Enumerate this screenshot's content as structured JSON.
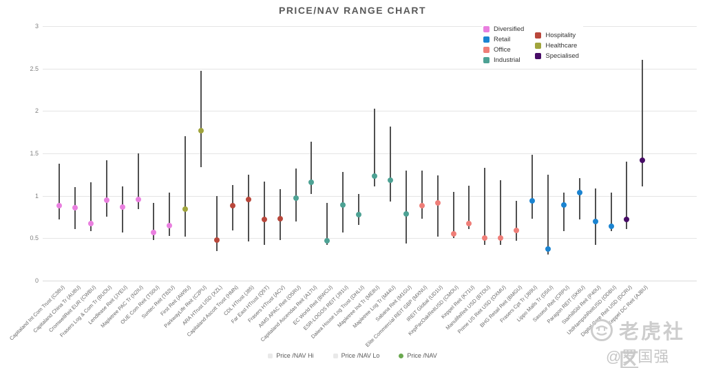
{
  "title": "PRICE/NAV RANGE CHART",
  "watermark": {
    "brand": "老虎社区",
    "handle": "@罗国强Kenny"
  },
  "colors": {
    "range_line": "#4f4f4f",
    "grid": "#e4e4e4",
    "title_text": "#595959",
    "axis_text": "#666666",
    "price_nav_marker": "#6aa84f",
    "sectors": {
      "Diversified": "#e97fdf",
      "Retail": "#1b84d1",
      "Office": "#ef7e78",
      "Industrial": "#4da294",
      "Hospitality": "#b9473b",
      "Healthcare": "#a0a43c",
      "Specialised": "#470c66"
    }
  },
  "sector_legend": {
    "column1": [
      "Diversified",
      "Retail",
      "Office",
      "Industrial"
    ],
    "column2": [
      "Hospitality",
      "Healthcare",
      "Specialised"
    ]
  },
  "series_legend": [
    {
      "label": "Price /NAV Hi",
      "marker": "dash"
    },
    {
      "label": "Price /NAV Lo",
      "marker": "dash"
    },
    {
      "label": "Price /NAV",
      "marker": "dot"
    }
  ],
  "chart_data": {
    "type": "scatter",
    "subtype": "hi-lo-range",
    "title": "PRICE/NAV RANGE CHART",
    "xlabel": "",
    "ylabel": "",
    "ylim": [
      0,
      3
    ],
    "yticks": [
      0,
      0.5,
      1,
      1.5,
      2,
      2.5,
      3
    ],
    "grid": true,
    "legend_position": "top-right",
    "series": [
      {
        "name": "Capitaland Int Com Trust (C38U)",
        "sector": "Diversified",
        "hi": 1.38,
        "lo": 0.72,
        "price_nav": 0.88
      },
      {
        "name": "Capitaland China Tr (AU8U)",
        "sector": "Diversified",
        "hi": 1.1,
        "lo": 0.61,
        "price_nav": 0.86
      },
      {
        "name": "CromwellReit EUR (CWBU)",
        "sector": "Diversified",
        "hi": 1.16,
        "lo": 0.58,
        "price_nav": 0.67
      },
      {
        "name": "Frasers Log & Com Tr (BUOU)",
        "sector": "Diversified",
        "hi": 1.42,
        "lo": 0.75,
        "price_nav": 0.95
      },
      {
        "name": "Lendlease Reit (JYEU)",
        "sector": "Diversified",
        "hi": 1.11,
        "lo": 0.57,
        "price_nav": 0.87
      },
      {
        "name": "Mapletree PAC Tr (N2IU)",
        "sector": "Diversified",
        "hi": 1.5,
        "lo": 0.84,
        "price_nav": 0.96
      },
      {
        "name": "OUE Com Reit (TS0U)",
        "sector": "Diversified",
        "hi": 0.92,
        "lo": 0.48,
        "price_nav": 0.57
      },
      {
        "name": "Suntec Reit (T82U)",
        "sector": "Diversified",
        "hi": 1.04,
        "lo": 0.53,
        "price_nav": 0.65
      },
      {
        "name": "First Reit (AW9U)",
        "sector": "Healthcare",
        "hi": 1.7,
        "lo": 0.52,
        "price_nav": 0.84
      },
      {
        "name": "ParkwayLife Reit (C2PU)",
        "sector": "Healthcare",
        "hi": 2.47,
        "lo": 1.34,
        "price_nav": 1.77
      },
      {
        "name": "ARA HTrust USD (XZL)",
        "sector": "Hospitality",
        "hi": 1.0,
        "lo": 0.35,
        "price_nav": 0.48
      },
      {
        "name": "Capitaland Ascott Trust (HMN)",
        "sector": "Hospitality",
        "hi": 1.13,
        "lo": 0.59,
        "price_nav": 0.88
      },
      {
        "name": "CDL HTrust (J85)",
        "sector": "Hospitality",
        "hi": 1.25,
        "lo": 0.46,
        "price_nav": 0.96
      },
      {
        "name": "Far East HTrust (Q5T)",
        "sector": "Hospitality",
        "hi": 1.17,
        "lo": 0.42,
        "price_nav": 0.72
      },
      {
        "name": "Frasers HTrust (ACV)",
        "sector": "Hospitality",
        "hi": 1.08,
        "lo": 0.48,
        "price_nav": 0.73
      },
      {
        "name": "AIMS APAC Reit (O5RU)",
        "sector": "Industrial",
        "hi": 1.32,
        "lo": 0.7,
        "price_nav": 0.97
      },
      {
        "name": "Capitaland Ascendas Reit (A17U)",
        "sector": "Industrial",
        "hi": 1.64,
        "lo": 1.02,
        "price_nav": 1.16
      },
      {
        "name": "EC World Reit (BWCU)",
        "sector": "Industrial",
        "hi": 0.92,
        "lo": 0.42,
        "price_nav": 0.47
      },
      {
        "name": "ESR-LOGOS REIT (J91U)",
        "sector": "Industrial",
        "hi": 1.28,
        "lo": 0.57,
        "price_nav": 0.89
      },
      {
        "name": "Daiwa House Log Trust (DHLU)",
        "sector": "Industrial",
        "hi": 1.02,
        "lo": 0.66,
        "price_nav": 0.78
      },
      {
        "name": "Mapletree Ind Tr (ME8U)",
        "sector": "Industrial",
        "hi": 2.03,
        "lo": 1.11,
        "price_nav": 1.23
      },
      {
        "name": "Mapletree Log Tr (M44U)",
        "sector": "Industrial",
        "hi": 1.82,
        "lo": 0.93,
        "price_nav": 1.18
      },
      {
        "name": "Sabana Reit (M1GU)",
        "sector": "Industrial",
        "hi": 1.3,
        "lo": 0.44,
        "price_nav": 0.79
      },
      {
        "name": "Elite Commercial REIT GBP (MXNU)",
        "sector": "Office",
        "hi": 1.3,
        "lo": 0.73,
        "price_nav": 0.88
      },
      {
        "name": "IREIT Global (UD1U)",
        "sector": "Office",
        "hi": 1.24,
        "lo": 0.52,
        "price_nav": 0.92
      },
      {
        "name": "KepPacOakReitUSD (CMOU)",
        "sector": "Office",
        "hi": 1.05,
        "lo": 0.5,
        "price_nav": 0.55
      },
      {
        "name": "Keppel Reit (K71U)",
        "sector": "Office",
        "hi": 1.12,
        "lo": 0.61,
        "price_nav": 0.67
      },
      {
        "name": "ManulifeReit USD (BTOU)",
        "sector": "Office",
        "hi": 1.33,
        "lo": 0.42,
        "price_nav": 0.5
      },
      {
        "name": "Prime US Reit USD (OXMU)",
        "sector": "Office",
        "hi": 1.18,
        "lo": 0.42,
        "price_nav": 0.5
      },
      {
        "name": "BHG Retail Reit (BMGU)",
        "sector": "Office",
        "hi": 0.94,
        "lo": 0.47,
        "price_nav": 0.59
      },
      {
        "name": "Frasers Cpt Tr (J69U)",
        "sector": "Retail",
        "hi": 1.48,
        "lo": 0.73,
        "price_nav": 0.94
      },
      {
        "name": "Lippo Malls Tr (D5IU)",
        "sector": "Retail",
        "hi": 1.25,
        "lo": 0.31,
        "price_nav": 0.37
      },
      {
        "name": "Sasseur Reit (CRPU)",
        "sector": "Retail",
        "hi": 1.04,
        "lo": 0.58,
        "price_nav": 0.89
      },
      {
        "name": "Paragon REIT (SK6U)",
        "sector": "Retail",
        "hi": 1.21,
        "lo": 0.72,
        "price_nav": 1.04
      },
      {
        "name": "StarhillGbl Reit (P40U)",
        "sector": "Retail",
        "hi": 1.09,
        "lo": 0.42,
        "price_nav": 0.7
      },
      {
        "name": "UtdHampshReitUSD (ODBU)",
        "sector": "Retail",
        "hi": 1.04,
        "lo": 0.58,
        "price_nav": 0.64
      },
      {
        "name": "Digital Core Reit USD (DCRU)",
        "sector": "Specialised",
        "hi": 1.4,
        "lo": 0.61,
        "price_nav": 0.72
      },
      {
        "name": "Keppel DC Reit (AJBU)",
        "sector": "Specialised",
        "hi": 2.6,
        "lo": 1.11,
        "price_nav": 1.42
      }
    ]
  }
}
